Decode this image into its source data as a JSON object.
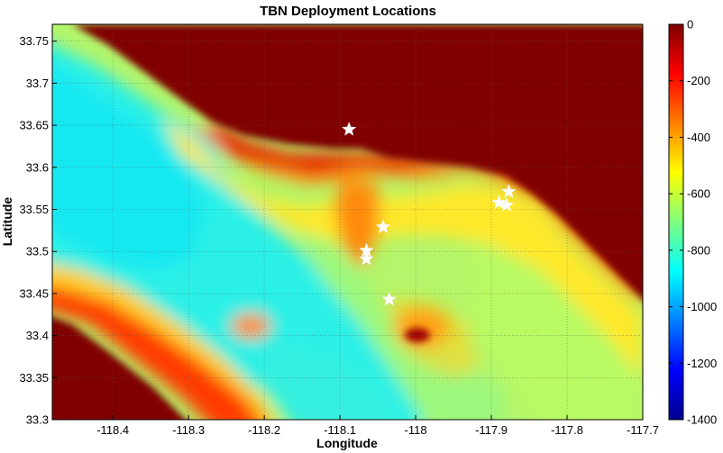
{
  "chart_data": {
    "type": "heatmap",
    "title": "TBN Deployment Locations",
    "xlabel": "Longitude",
    "ylabel": "Latitude",
    "xlim": [
      -118.48,
      -117.7
    ],
    "ylim": [
      33.3,
      33.77
    ],
    "xticks": [
      -118.4,
      -118.3,
      -118.2,
      -118.1,
      -118.0,
      -117.9,
      -117.8,
      -117.7
    ],
    "xtick_labels": [
      "-118.4",
      "-118.3",
      "-118.2",
      "-118.1",
      "-118",
      "-117.9",
      "-117.8",
      "-117.7"
    ],
    "yticks": [
      33.3,
      33.35,
      33.4,
      33.45,
      33.5,
      33.55,
      33.6,
      33.65,
      33.7,
      33.75
    ],
    "ytick_labels": [
      "33.3",
      "33.35",
      "33.4",
      "33.45",
      "33.5",
      "33.55",
      "33.6",
      "33.65",
      "33.7",
      "33.75"
    ],
    "grid": true,
    "colorbar": {
      "range": [
        -1400,
        0
      ],
      "ticks": [
        0,
        -200,
        -400,
        -600,
        -800,
        -1000,
        -1200,
        -1400
      ],
      "tick_labels": [
        "0",
        "-200",
        "-400",
        "-600",
        "-800",
        "-1000",
        "-1200",
        "-1400"
      ],
      "colormap": "jet"
    },
    "markers": {
      "symbol": "star",
      "color": "#ffffff",
      "points": [
        {
          "x": -118.088,
          "y": 33.645
        },
        {
          "x": -118.043,
          "y": 33.529
        },
        {
          "x": -118.065,
          "y": 33.501
        },
        {
          "x": -118.065,
          "y": 33.491
        },
        {
          "x": -118.035,
          "y": 33.443
        },
        {
          "x": -117.89,
          "y": 33.558
        },
        {
          "x": -117.88,
          "y": 33.555
        },
        {
          "x": -117.877,
          "y": 33.571
        }
      ]
    }
  }
}
